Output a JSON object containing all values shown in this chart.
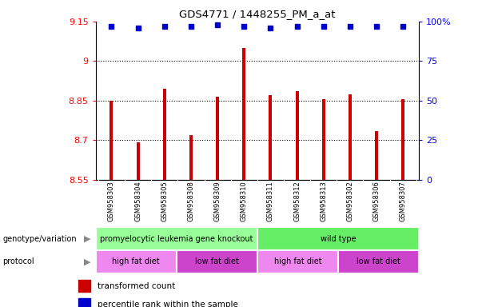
{
  "title": "GDS4771 / 1448255_PM_a_at",
  "samples": [
    "GSM958303",
    "GSM958304",
    "GSM958305",
    "GSM958308",
    "GSM958309",
    "GSM958310",
    "GSM958311",
    "GSM958312",
    "GSM958313",
    "GSM958302",
    "GSM958306",
    "GSM958307"
  ],
  "bar_values": [
    8.85,
    8.69,
    8.895,
    8.72,
    8.865,
    9.05,
    8.87,
    8.885,
    8.855,
    8.875,
    8.735,
    8.855
  ],
  "percentile_values": [
    97,
    96,
    97,
    97,
    98,
    97,
    96,
    97,
    97,
    97,
    97,
    97
  ],
  "ylim": [
    8.55,
    9.15
  ],
  "yticks": [
    8.55,
    8.7,
    8.85,
    9.0,
    9.15
  ],
  "ytick_labels": [
    "8.55",
    "8.7",
    "8.85",
    "9",
    "9.15"
  ],
  "right_yticks": [
    0,
    25,
    50,
    75,
    100
  ],
  "right_ytick_labels": [
    "0",
    "25",
    "50",
    "75",
    "100%"
  ],
  "bar_color": "#cc0000",
  "dot_color": "#0000cc",
  "genotype_groups": [
    {
      "label": "promyelocytic leukemia gene knockout",
      "start": 0,
      "end": 6,
      "color": "#99ff99"
    },
    {
      "label": "wild type",
      "start": 6,
      "end": 12,
      "color": "#66ee66"
    }
  ],
  "protocol_groups": [
    {
      "label": "high fat diet",
      "start": 0,
      "end": 3,
      "color": "#ee88ee"
    },
    {
      "label": "low fat diet",
      "start": 3,
      "end": 6,
      "color": "#cc44cc"
    },
    {
      "label": "high fat diet",
      "start": 6,
      "end": 9,
      "color": "#ee88ee"
    },
    {
      "label": "low fat diet",
      "start": 9,
      "end": 12,
      "color": "#cc44cc"
    }
  ],
  "legend_items": [
    {
      "label": "transformed count",
      "color": "#cc0000"
    },
    {
      "label": "percentile rank within the sample",
      "color": "#0000cc"
    }
  ],
  "xlabel_left": "genotype/variation",
  "xlabel_left2": "protocol",
  "tick_area_color": "#cccccc"
}
